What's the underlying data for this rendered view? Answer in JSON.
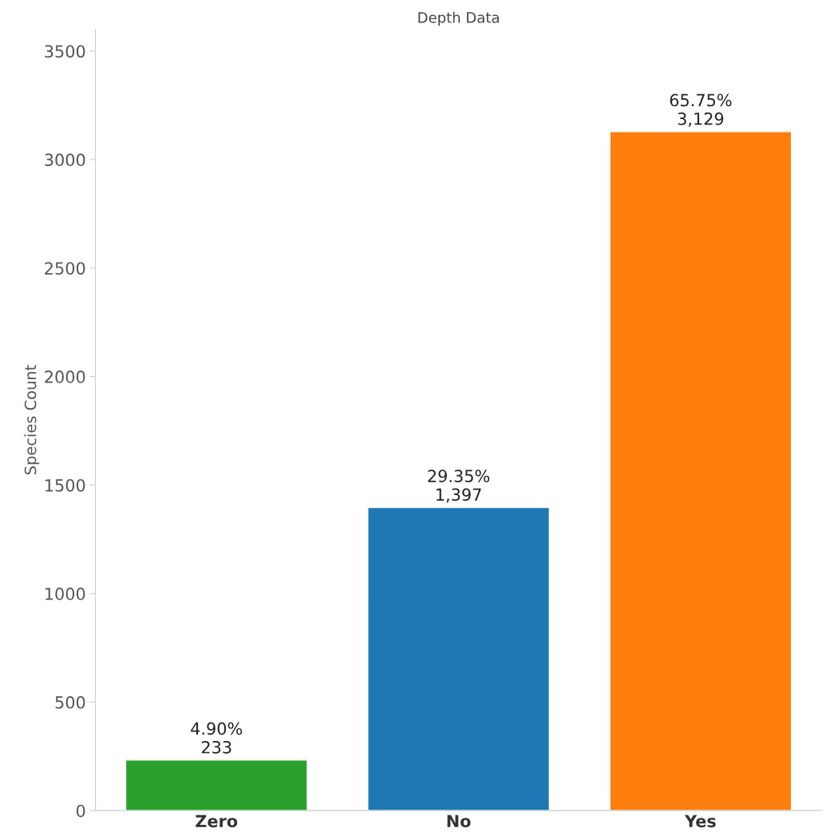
{
  "chart_data": {
    "type": "bar",
    "title": "Depth Data",
    "ylabel": "Species Count",
    "categories": [
      "Zero",
      "No",
      "Yes"
    ],
    "values": [
      233,
      1397,
      3129
    ],
    "colors": [
      "#2ca02c",
      "#1f77b4",
      "#ff7f0e"
    ],
    "value_labels": [
      "4.90%\n233",
      "29.35%\n1,397",
      "65.75%\n3,129"
    ],
    "ylim": [
      0,
      3600
    ],
    "yticks": [
      0,
      500,
      1000,
      1500,
      2000,
      2500,
      3000,
      3500
    ],
    "grid": false
  }
}
